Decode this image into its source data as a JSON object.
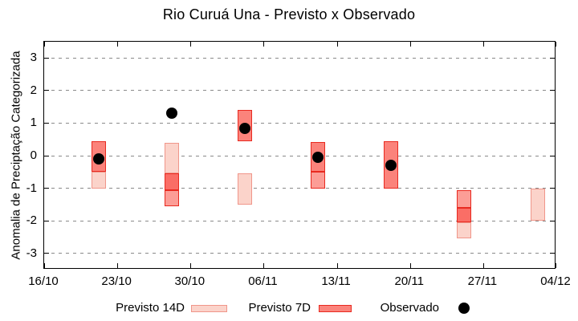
{
  "title": "Rio Curuá Una - Previsto x Observado",
  "axes": {
    "y_label": "Anomalia de Preciptação Categorizada",
    "y_ticks": [
      "3",
      "2",
      "1",
      "0",
      "-1",
      "-2",
      "-3"
    ],
    "x_ticks": [
      "16/10",
      "23/10",
      "30/10",
      "06/11",
      "13/11",
      "20/11",
      "27/11",
      "04/12"
    ]
  },
  "legend": {
    "previsto14": "Previsto 14D",
    "previsto7": "Previsto 7D",
    "observado": "Observado"
  },
  "colors": {
    "forecast7_fill": "#FB837B",
    "forecast7_fill_dark": "#FA6E66",
    "forecast7_fill_light": "#FC9D96",
    "forecast7_border": "#E82A20",
    "forecast14_fill": "#FBD3CA",
    "forecast14_border": "#F0968A",
    "observed_dot": "#000000",
    "grid": "#8A8A8A"
  },
  "chart_data": {
    "type": "bar",
    "title": "Rio Curuá Una - Previsto x Observado",
    "xlabel": "",
    "ylabel": "Anomalia de Preciptação Categorizada",
    "ylim": [
      -3.5,
      3.5
    ],
    "x_span_days": 49,
    "x_tick_labels": [
      "16/10",
      "23/10",
      "30/10",
      "06/11",
      "13/11",
      "20/11",
      "27/11",
      "04/12"
    ],
    "y_tick_values": [
      3,
      2,
      1,
      0,
      -1,
      -2,
      -3
    ],
    "grid": "horizontal-dotted",
    "legend_position": "bottom",
    "categories": [
      "21/10",
      "28/10",
      "04/11",
      "11/11",
      "18/11",
      "25/11",
      "02/12"
    ],
    "day_offsets": [
      5.2,
      12.2,
      19.2,
      26.2,
      33.2,
      40.2,
      47.2
    ],
    "series": [
      {
        "name": "Previsto 14D",
        "type": "range-bar",
        "ranges": [
          [
            -1.0,
            0.45
          ],
          [
            -1.55,
            0.4
          ],
          [
            -1.5,
            -0.55
          ],
          [
            -1.0,
            0.42
          ],
          null,
          [
            -2.55,
            -1.05
          ],
          [
            -2.0,
            -1.0
          ]
        ]
      },
      {
        "name": "Previsto 7D",
        "type": "range-bar",
        "ranges": [
          [
            -0.5,
            0.45
          ],
          [
            -1.55,
            -0.55
          ],
          [
            0.45,
            1.4
          ],
          [
            -0.5,
            0.42
          ],
          [
            -1.0,
            0.45
          ],
          [
            -2.05,
            -1.05
          ],
          null
        ]
      },
      {
        "name": "Observado",
        "type": "scatter",
        "values": [
          -0.1,
          1.3,
          0.85,
          -0.05,
          -0.3,
          null,
          null
        ]
      }
    ],
    "render_segments": [
      {
        "day": 5.2,
        "y0": -1.0,
        "y1": -0.5,
        "style": "d14"
      },
      {
        "day": 5.2,
        "y0": -0.5,
        "y1": 0.45,
        "style": "d7"
      },
      {
        "day": 12.2,
        "y0": -0.55,
        "y1": 0.4,
        "style": "d14"
      },
      {
        "day": 12.2,
        "y0": -1.05,
        "y1": -0.55,
        "style": "d7dark"
      },
      {
        "day": 12.2,
        "y0": -1.55,
        "y1": -1.05,
        "style": "d7light"
      },
      {
        "day": 19.2,
        "y0": 0.45,
        "y1": 1.4,
        "style": "d7"
      },
      {
        "day": 19.2,
        "y0": -1.5,
        "y1": -0.55,
        "style": "d14"
      },
      {
        "day": 26.2,
        "y0": -0.5,
        "y1": 0.42,
        "style": "d7"
      },
      {
        "day": 26.2,
        "y0": -1.0,
        "y1": -0.5,
        "style": "d7light"
      },
      {
        "day": 33.2,
        "y0": -1.0,
        "y1": 0.45,
        "style": "d7"
      },
      {
        "day": 40.2,
        "y0": -1.6,
        "y1": -1.05,
        "style": "d7light"
      },
      {
        "day": 40.2,
        "y0": -2.05,
        "y1": -1.6,
        "style": "d7dark"
      },
      {
        "day": 40.2,
        "y0": -2.55,
        "y1": -2.05,
        "style": "d14"
      },
      {
        "day": 47.2,
        "y0": -2.0,
        "y1": -1.0,
        "style": "d14"
      }
    ],
    "observed_points": [
      {
        "day": 5.2,
        "y": -0.1
      },
      {
        "day": 12.2,
        "y": 1.3
      },
      {
        "day": 19.2,
        "y": 0.85
      },
      {
        "day": 26.2,
        "y": -0.05
      },
      {
        "day": 33.2,
        "y": -0.3
      }
    ]
  }
}
